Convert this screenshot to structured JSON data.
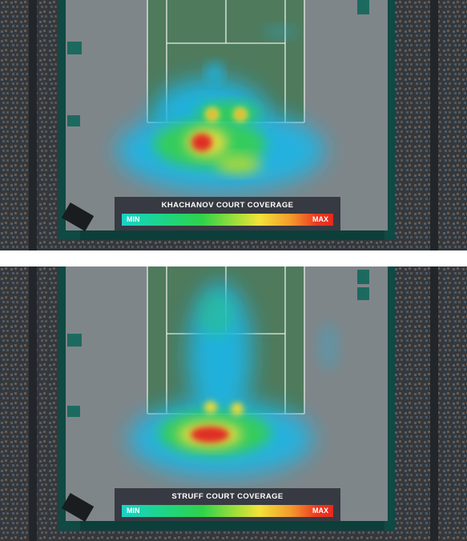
{
  "panels": [
    {
      "player": "KHACHANOV",
      "legend_title": "KHACHANOV COURT COVERAGE",
      "legend_min": "MIN",
      "legend_max": "MAX"
    },
    {
      "player": "STRUFF",
      "legend_title": "STRUFF COURT COVERAGE",
      "legend_min": "MIN",
      "legend_max": "MAX"
    }
  ],
  "colors": {
    "court_surface": "#7f8689",
    "court_green": "#4f7a5c",
    "line": "#e9efe9",
    "wall": "#0f4a44",
    "stands": "#3a3d41",
    "heat_low": "#1fb6e6",
    "heat_mid": "#2ed35a",
    "heat_high": "#f2e23a",
    "heat_peak": "#e8281c"
  }
}
